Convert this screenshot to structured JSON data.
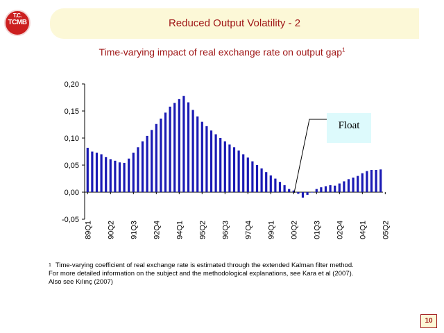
{
  "logo": {
    "top_text": "T.C.",
    "letters": "TCMB"
  },
  "header": {
    "title": "Reduced Output Volatility - 2"
  },
  "chart_data": {
    "type": "bar",
    "title": "Time-varying impact of real exchange rate on output gap",
    "title_footnote_mark": "1",
    "xlabel": "",
    "ylabel": "",
    "ylim": [
      -0.05,
      0.2
    ],
    "yticks": [
      -0.05,
      0.0,
      0.05,
      0.1,
      0.15,
      0.2
    ],
    "ytick_labels": [
      "-0,05",
      "0,00",
      "0,05",
      "0,10",
      "0,15",
      "0,20"
    ],
    "xtick_labels": [
      "89Q1",
      "90Q2",
      "91Q3",
      "92Q4",
      "94Q1",
      "95Q2",
      "96Q3",
      "97Q4",
      "99Q1",
      "00Q2",
      "01Q3",
      "02Q4",
      "04Q1",
      "05Q2"
    ],
    "xtick_every": 5,
    "grid": false,
    "bar_color": "#1a1ab4",
    "values": [
      0.082,
      0.075,
      0.073,
      0.07,
      0.065,
      0.061,
      0.058,
      0.055,
      0.054,
      0.062,
      0.073,
      0.083,
      0.094,
      0.104,
      0.115,
      0.126,
      0.136,
      0.147,
      0.158,
      0.165,
      0.172,
      0.178,
      0.166,
      0.152,
      0.14,
      0.13,
      0.122,
      0.114,
      0.107,
      0.1,
      0.094,
      0.088,
      0.083,
      0.077,
      0.07,
      0.064,
      0.057,
      0.05,
      0.044,
      0.037,
      0.031,
      0.025,
      0.019,
      0.013,
      0.006,
      0.003,
      -0.003,
      -0.01,
      -0.005,
      0.0,
      0.006,
      0.009,
      0.011,
      0.013,
      0.012,
      0.016,
      0.02,
      0.024,
      0.027,
      0.03,
      0.035,
      0.039,
      0.041,
      0.041,
      0.042
    ],
    "annotation": {
      "text": "Float"
    }
  },
  "footnote": {
    "mark": "1",
    "lines": [
      "Time-varying coefficient of real exchange rate is estimated through the extended Kalman filter method.",
      "For more detailed information on the subject and the methodological explanations, see Kara et al (2007).",
      "Also see Kılınç (2007)"
    ]
  },
  "page_number": "10"
}
